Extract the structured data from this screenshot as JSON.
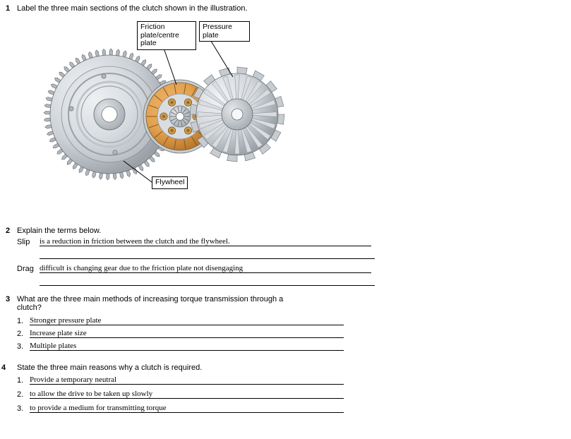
{
  "q1": {
    "num": "1",
    "text": "Label the three main sections of the clutch shown in the illustration.",
    "labelFriction": "Friction\nplate/centre\nplate",
    "labelPressure": "Pressure\nplate",
    "labelFlywheel": "Flywheel",
    "illustration": {
      "flywheel": {
        "gearOuter": "#b1b7bd",
        "gearInner": "#9aa0a6",
        "ringHighlight": "#e5e8eb",
        "ringShadow": "#c7ccd1",
        "face": "#d9dde1",
        "hubOuter": "#bfc5ca",
        "hubHole": "#ffffff",
        "edgeDark": "#6a6f74"
      },
      "friction": {
        "outer": "#caccce",
        "rimDark": "#9aa0a6",
        "liningLight": "#e3a24f",
        "liningDark": "#c67f28",
        "hub": "#d9dde1",
        "spline": "#6a6f74",
        "spring": "#b07a2a"
      },
      "pressure": {
        "coverLight": "#e5e8eb",
        "coverMid": "#c7ccd1",
        "coverDark": "#9aa0a6",
        "fingerLight": "#d9dde1",
        "fingerDark": "#a6acb2",
        "hub": "#bfc5ca",
        "edge": "#6a6f74"
      },
      "stroke": "#2a2a2a"
    }
  },
  "q2": {
    "num": "2",
    "text": "Explain the terms below.",
    "slipLabel": "Slip",
    "slipAns": "is a reduction in friction between the clutch and the flywheel.",
    "dragLabel": "Drag",
    "dragAns": "difficult is changing gear due to the friction plate not disengaging",
    "fieldWidth": 470,
    "blankWidth2": 475
  },
  "q3": {
    "num": "3",
    "text": "What are the three main methods of increasing torque transmission through a\nclutch?",
    "n1": "1.",
    "n2": "2.",
    "n3": "3.",
    "a1": "Stronger pressure plate",
    "a2": "Increase plate size",
    "a3": "Multiple plates",
    "fieldWidth": 445
  },
  "q4": {
    "num": "4",
    "text": "State the three main reasons why a clutch is required.",
    "n1": "1.",
    "n2": "2.",
    "n3": "3.",
    "a1": "Provide a temporary neutral",
    "a2": "to allow the drive to be taken up slowly",
    "a3": "to provide a medium for transmitting torque",
    "fieldWidth": 445
  }
}
